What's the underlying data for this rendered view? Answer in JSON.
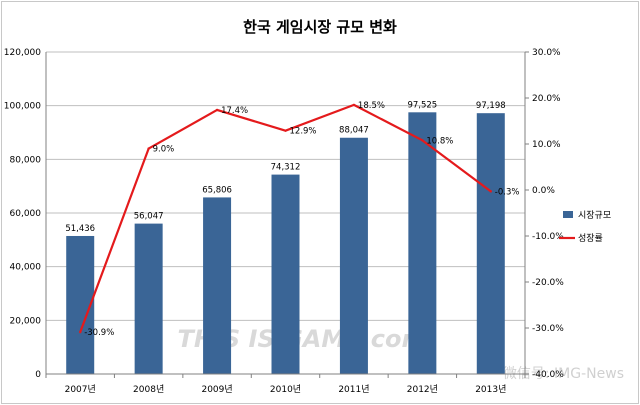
{
  "chart_data": {
    "type": "bar+line",
    "title": "한국 게임시장 규모 변화",
    "categories": [
      "2007년",
      "2008년",
      "2009년",
      "2010년",
      "2011년",
      "2012년",
      "2013년"
    ],
    "series": [
      {
        "name": "시장규모",
        "type": "bar",
        "axis": "left",
        "color": "#3a6596",
        "values": [
          51436,
          56047,
          65806,
          74312,
          88047,
          97525,
          97198
        ],
        "labels": [
          "51,436",
          "56,047",
          "65,806",
          "74,312",
          "88,047",
          "97,525",
          "97,198"
        ]
      },
      {
        "name": "성장률",
        "type": "line",
        "axis": "right",
        "color": "#e41a1c",
        "values": [
          -30.9,
          9.0,
          17.4,
          12.9,
          18.5,
          10.8,
          -0.3
        ],
        "labels": [
          "-30.9%",
          "9.0%",
          "17.4%",
          "12.9%",
          "18.5%",
          "10.8%",
          "-0.3%"
        ]
      }
    ],
    "y_left": {
      "min": 0,
      "max": 120000,
      "ticks": [
        0,
        20000,
        40000,
        60000,
        80000,
        100000,
        120000
      ],
      "tick_labels": [
        "0",
        "20,000",
        "40,000",
        "60,000",
        "80,000",
        "100,000",
        "120,000"
      ]
    },
    "y_right": {
      "min": -40,
      "max": 30,
      "ticks": [
        -40,
        -30,
        -20,
        -10,
        0,
        10,
        20,
        30
      ],
      "tick_labels": [
        "-40.0%",
        "-30.0%",
        "-20.0%",
        "-10.0%",
        "0.0%",
        "10.0%",
        "20.0%",
        "30.0%"
      ]
    },
    "grid": true,
    "legend_position": "right",
    "watermarks": [
      "THIS IS GAME.com",
      "微信号: IMG-News"
    ]
  }
}
